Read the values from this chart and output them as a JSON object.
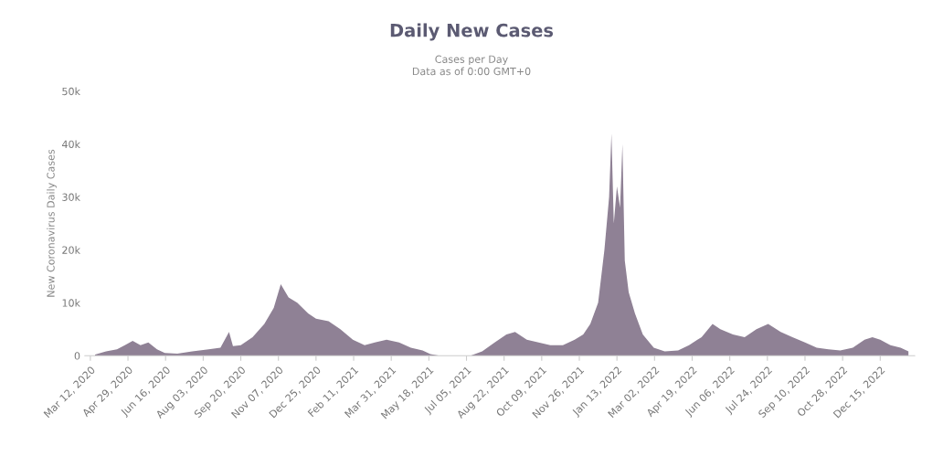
{
  "chart_data": {
    "type": "area",
    "title": "Daily New Cases",
    "subtitle": "Cases per Day\nData as of 0:00 GMT+0",
    "ylabel": "New Coronavirus Daily Cases",
    "x": [
      "2020-03-18",
      "2020-04-01",
      "2020-04-15",
      "2020-04-25",
      "2020-05-05",
      "2020-05-15",
      "2020-05-25",
      "2020-06-05",
      "2020-06-15",
      "2020-07-01",
      "2020-07-20",
      "2020-08-10",
      "2020-08-25",
      "2020-09-05",
      "2020-09-10",
      "2020-09-20",
      "2020-10-05",
      "2020-10-20",
      "2020-11-01",
      "2020-11-10",
      "2020-11-20",
      "2020-12-01",
      "2020-12-15",
      "2020-12-25",
      "2021-01-10",
      "2021-01-25",
      "2021-02-10",
      "2021-02-25",
      "2021-03-10",
      "2021-03-25",
      "2021-04-10",
      "2021-04-25",
      "2021-05-10",
      "2021-05-20",
      "2021-06-01",
      "2021-06-20",
      "2021-07-10",
      "2021-07-25",
      "2021-08-10",
      "2021-08-25",
      "2021-09-05",
      "2021-09-20",
      "2021-10-05",
      "2021-10-20",
      "2021-11-05",
      "2021-11-20",
      "2021-12-01",
      "2021-12-10",
      "2021-12-20",
      "2021-12-28",
      "2022-01-03",
      "2022-01-06",
      "2022-01-09",
      "2022-01-13",
      "2022-01-17",
      "2022-01-20",
      "2022-01-23",
      "2022-01-28",
      "2022-02-05",
      "2022-02-15",
      "2022-03-01",
      "2022-03-15",
      "2022-04-01",
      "2022-04-15",
      "2022-05-01",
      "2022-05-15",
      "2022-05-25",
      "2022-06-10",
      "2022-06-25",
      "2022-07-10",
      "2022-07-25",
      "2022-08-10",
      "2022-08-25",
      "2022-09-10",
      "2022-09-25",
      "2022-10-10",
      "2022-10-25",
      "2022-11-10",
      "2022-11-25",
      "2022-12-05",
      "2022-12-15",
      "2022-12-28",
      "2023-01-10",
      "2023-01-20"
    ],
    "series": [
      {
        "color": "#8f8195",
        "values": [
          200,
          800,
          1200,
          2000,
          2800,
          2000,
          2500,
          1200,
          500,
          400,
          800,
          1200,
          1500,
          4500,
          1800,
          2000,
          3500,
          6000,
          9000,
          13500,
          11000,
          10000,
          8000,
          7000,
          6500,
          5000,
          3000,
          2000,
          2500,
          3000,
          2500,
          1500,
          1000,
          300,
          0,
          0,
          0,
          800,
          2500,
          4000,
          4500,
          3000,
          2500,
          2000,
          2000,
          3000,
          4000,
          6000,
          10000,
          20000,
          30000,
          42000,
          25000,
          32000,
          28000,
          40000,
          18000,
          12000,
          8000,
          4000,
          1500,
          800,
          1000,
          2000,
          3500,
          6000,
          5000,
          4000,
          3500,
          5000,
          6000,
          4500,
          3500,
          2500,
          1500,
          1200,
          1000,
          1500,
          3000,
          3500,
          3000,
          2000,
          1500,
          800
        ]
      }
    ],
    "xlim": [
      "2020-03-05",
      "2023-01-28"
    ],
    "xticks": [
      {
        "value": "2020-03-12",
        "label": "Mar 12, 2020"
      },
      {
        "value": "2020-04-29",
        "label": "Apr 29, 2020"
      },
      {
        "value": "2020-06-16",
        "label": "Jun 16, 2020"
      },
      {
        "value": "2020-08-03",
        "label": "Aug 03, 2020"
      },
      {
        "value": "2020-09-20",
        "label": "Sep 20, 2020"
      },
      {
        "value": "2020-11-07",
        "label": "Nov 07, 2020"
      },
      {
        "value": "2020-12-25",
        "label": "Dec 25, 2020"
      },
      {
        "value": "2021-02-11",
        "label": "Feb 11, 2021"
      },
      {
        "value": "2021-03-31",
        "label": "Mar 31, 2021"
      },
      {
        "value": "2021-05-18",
        "label": "May 18, 2021"
      },
      {
        "value": "2021-07-05",
        "label": "Jul 05, 2021"
      },
      {
        "value": "2021-08-22",
        "label": "Aug 22, 2021"
      },
      {
        "value": "2021-10-09",
        "label": "Oct 09, 2021"
      },
      {
        "value": "2021-11-26",
        "label": "Nov 26, 2021"
      },
      {
        "value": "2022-01-13",
        "label": "Jan 13, 2022"
      },
      {
        "value": "2022-03-02",
        "label": "Mar 02, 2022"
      },
      {
        "value": "2022-04-19",
        "label": "Apr 19, 2022"
      },
      {
        "value": "2022-06-06",
        "label": "Jun 06, 2022"
      },
      {
        "value": "2022-07-24",
        "label": "Jul 24, 2022"
      },
      {
        "value": "2022-09-10",
        "label": "Sep 10, 2022"
      },
      {
        "value": "2022-10-28",
        "label": "Oct 28, 2022"
      },
      {
        "value": "2022-12-15",
        "label": "Dec 15, 2022"
      }
    ],
    "ylim": [
      0,
      50000
    ],
    "yticks": [
      0,
      {
        "value": 10000,
        "label": "10k"
      },
      {
        "value": 20000,
        "label": "20k"
      },
      {
        "value": 30000,
        "label": "30k"
      },
      {
        "value": 40000,
        "label": "40k"
      },
      {
        "value": 50000,
        "label": "50k"
      }
    ]
  }
}
